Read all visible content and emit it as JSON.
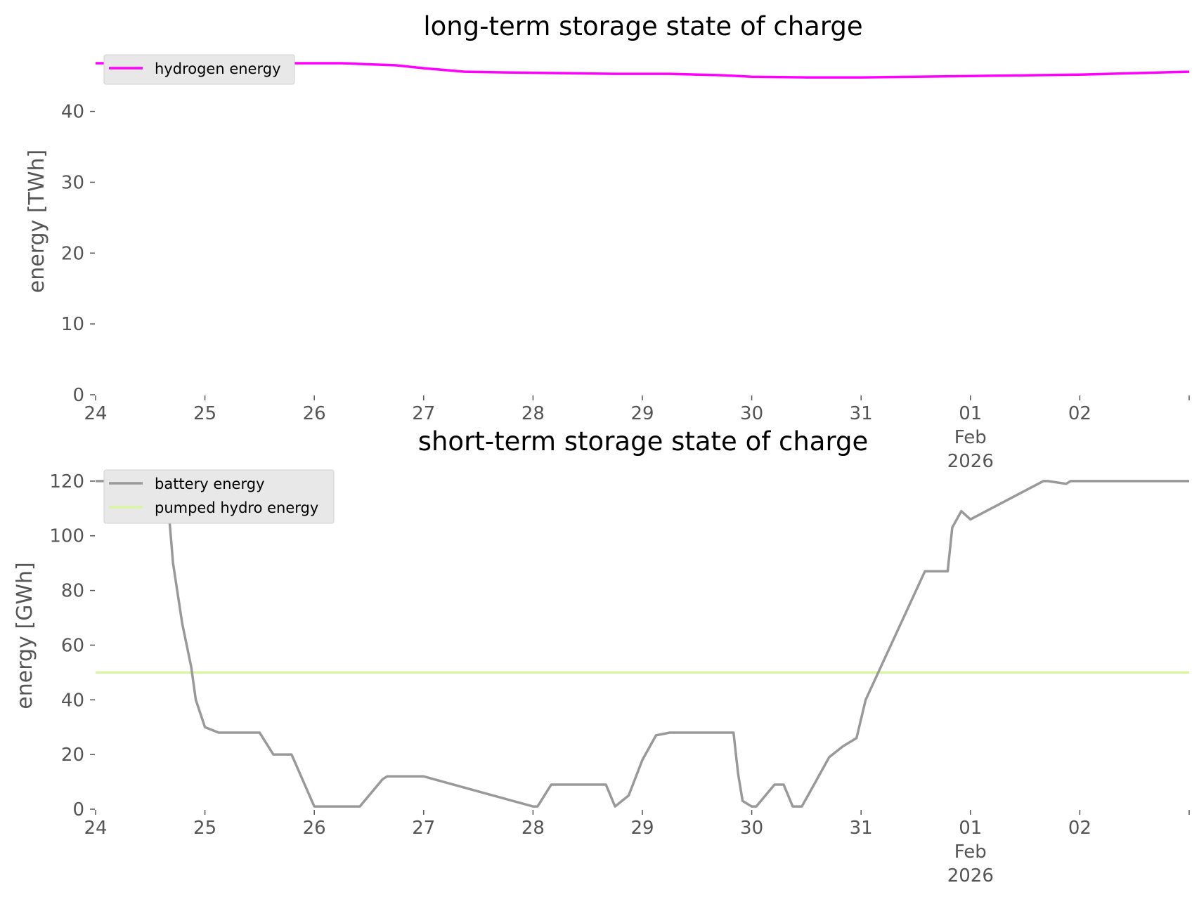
{
  "colors": {
    "hydrogen": "#ff00ff",
    "battery": "#999999",
    "pumped_hydro": "#d8f5a2",
    "legend_bg": "#e8e8e8",
    "tick_color": "#555555"
  },
  "chart_data": [
    {
      "type": "line",
      "title": "long-term storage state of charge",
      "ylabel": "energy [TWh]",
      "xlabel": "",
      "ylim": [
        0,
        47
      ],
      "xlim": [
        "2026-01-24",
        "2026-02-03"
      ],
      "yticks": [
        0,
        10,
        20,
        30,
        40
      ],
      "xticks": [
        {
          "date": "2026-01-24",
          "lines": [
            "24"
          ]
        },
        {
          "date": "2026-01-25",
          "lines": [
            "25"
          ]
        },
        {
          "date": "2026-01-26",
          "lines": [
            "26"
          ]
        },
        {
          "date": "2026-01-27",
          "lines": [
            "27"
          ]
        },
        {
          "date": "2026-01-28",
          "lines": [
            "28"
          ]
        },
        {
          "date": "2026-01-29",
          "lines": [
            "29"
          ]
        },
        {
          "date": "2026-01-30",
          "lines": [
            "30"
          ]
        },
        {
          "date": "2026-01-31",
          "lines": [
            "31"
          ]
        },
        {
          "date": "2026-02-01",
          "lines": [
            "01",
            "Feb",
            "2026"
          ]
        },
        {
          "date": "2026-02-02",
          "lines": [
            "02"
          ]
        }
      ],
      "grid": false,
      "legend": "top-left",
      "series": [
        {
          "name": "hydrogen energy",
          "color": "#ff00ff",
          "x": [
            "2026-01-24 00:00",
            "2026-01-25 00:00",
            "2026-01-26 00:00",
            "2026-01-26 06:00",
            "2026-01-26 18:00",
            "2026-01-27 00:00",
            "2026-01-27 09:00",
            "2026-01-27 18:00",
            "2026-01-28 06:00",
            "2026-01-28 18:00",
            "2026-01-29 06:00",
            "2026-01-29 18:00",
            "2026-01-30 00:00",
            "2026-01-30 12:00",
            "2026-01-31 00:00",
            "2026-01-31 12:00",
            "2026-02-01 00:00",
            "2026-02-01 12:00",
            "2026-02-02 00:00",
            "2026-02-02 12:00",
            "2026-02-03 00:00"
          ],
          "y": [
            46.8,
            46.8,
            46.8,
            46.8,
            46.5,
            46.1,
            45.6,
            45.5,
            45.4,
            45.3,
            45.3,
            45.1,
            44.9,
            44.8,
            44.8,
            44.9,
            45.0,
            45.1,
            45.2,
            45.4,
            45.6
          ]
        }
      ]
    },
    {
      "type": "line",
      "title": "short-term storage state of charge",
      "ylabel": "energy [GWh]",
      "xlabel": "",
      "ylim": [
        0,
        121
      ],
      "xlim": [
        "2026-01-24",
        "2026-02-03"
      ],
      "yticks": [
        0,
        20,
        40,
        60,
        80,
        100,
        120
      ],
      "xticks": [
        {
          "date": "2026-01-24",
          "lines": [
            "24"
          ]
        },
        {
          "date": "2026-01-25",
          "lines": [
            "25"
          ]
        },
        {
          "date": "2026-01-26",
          "lines": [
            "26"
          ]
        },
        {
          "date": "2026-01-27",
          "lines": [
            "27"
          ]
        },
        {
          "date": "2026-01-28",
          "lines": [
            "28"
          ]
        },
        {
          "date": "2026-01-29",
          "lines": [
            "29"
          ]
        },
        {
          "date": "2026-01-30",
          "lines": [
            "30"
          ]
        },
        {
          "date": "2026-01-31",
          "lines": [
            "31"
          ]
        },
        {
          "date": "2026-02-01",
          "lines": [
            "01",
            "Feb",
            "2026"
          ]
        },
        {
          "date": "2026-02-02",
          "lines": [
            "02"
          ]
        }
      ],
      "grid": false,
      "legend": "top-left",
      "series": [
        {
          "name": "battery energy",
          "color": "#999999",
          "x": [
            "2026-01-24 00:00",
            "2026-01-24 07:00",
            "2026-01-24 08:00",
            "2026-01-24 15:00",
            "2026-01-24 16:00",
            "2026-01-24 17:00",
            "2026-01-24 19:00",
            "2026-01-24 21:00",
            "2026-01-24 22:00",
            "2026-01-25 00:00",
            "2026-01-25 03:00",
            "2026-01-25 07:00",
            "2026-01-25 08:00",
            "2026-01-25 12:00",
            "2026-01-25 15:00",
            "2026-01-25 19:00",
            "2026-01-26 00:00",
            "2026-01-26 10:00",
            "2026-01-26 15:00",
            "2026-01-26 16:00",
            "2026-01-26 19:00",
            "2026-01-26 21:00",
            "2026-01-27 00:00",
            "2026-01-28 00:00",
            "2026-01-28 01:00",
            "2026-01-28 04:00",
            "2026-01-28 06:00",
            "2026-01-28 16:00",
            "2026-01-28 18:00",
            "2026-01-28 21:00",
            "2026-01-29 00:00",
            "2026-01-29 03:00",
            "2026-01-29 06:00",
            "2026-01-29 20:00",
            "2026-01-29 21:00",
            "2026-01-29 22:00",
            "2026-01-30 00:00",
            "2026-01-30 01:00",
            "2026-01-30 03:00",
            "2026-01-30 05:00",
            "2026-01-30 07:00",
            "2026-01-30 09:00",
            "2026-01-30 11:00",
            "2026-01-30 14:00",
            "2026-01-30 17:00",
            "2026-01-30 20:00",
            "2026-01-30 23:00",
            "2026-01-31 01:00",
            "2026-01-31 14:00",
            "2026-01-31 15:00",
            "2026-01-31 17:00",
            "2026-01-31 19:00",
            "2026-01-31 20:00",
            "2026-01-31 22:00",
            "2026-02-01 00:00",
            "2026-02-01 16:00",
            "2026-02-01 17:00",
            "2026-02-01 21:00",
            "2026-02-01 22:00",
            "2026-02-03 00:00"
          ],
          "y": [
            120,
            120,
            119,
            118,
            110,
            90,
            68,
            52,
            40,
            30,
            28,
            28,
            28,
            28,
            20,
            20,
            1,
            1,
            11,
            12,
            12,
            12,
            12,
            1,
            1,
            9,
            9,
            9,
            1,
            5,
            18,
            27,
            28,
            28,
            13,
            3,
            1,
            1,
            5,
            9,
            9,
            1,
            1,
            10,
            19,
            23,
            26,
            40,
            87,
            87,
            87,
            87,
            103,
            109,
            106,
            120,
            120,
            119,
            120,
            120
          ]
        },
        {
          "name": "pumped hydro energy",
          "color": "#d8f5a2",
          "x": [
            "2026-01-24 00:00",
            "2026-02-03 00:00"
          ],
          "y": [
            50,
            50
          ]
        }
      ]
    }
  ]
}
